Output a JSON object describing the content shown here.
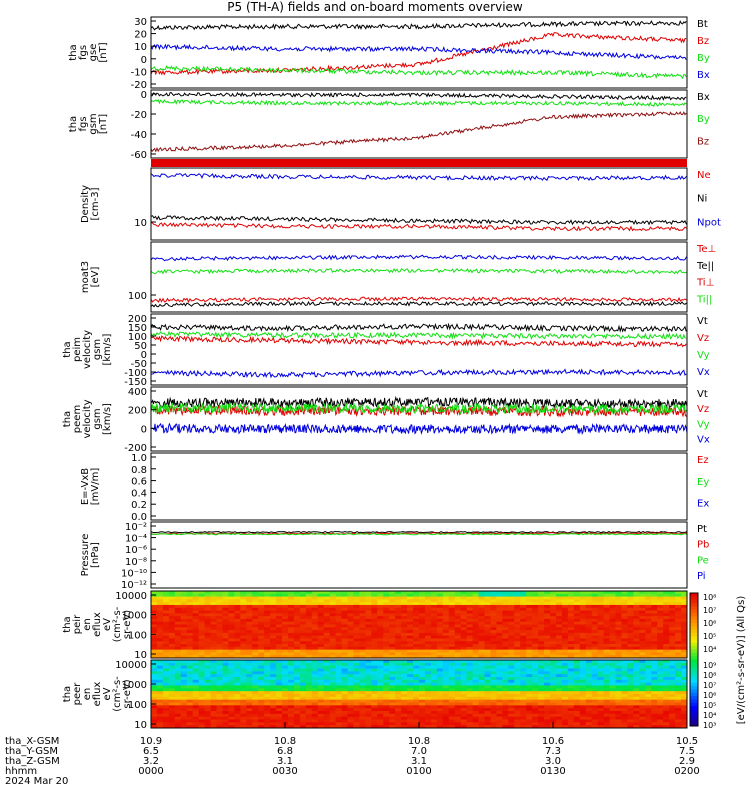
{
  "title": "P5 (TH-A) fields and on-board moments overview",
  "colors": {
    "black": "#000000",
    "red": "#e00000",
    "green": "#10e010",
    "blue": "#0000e0",
    "darkred": "#901010"
  },
  "panels": [
    {
      "id": "fgs-gse",
      "ylabel": [
        "tha",
        "fgs",
        "gse",
        "[nT]"
      ],
      "ticks": [
        "30",
        "20",
        "10",
        "0",
        "-10",
        "-20"
      ],
      "legend": [
        {
          "name": "Bt",
          "color": "black"
        },
        {
          "name": "Bz",
          "color": "red"
        },
        {
          "name": "By",
          "color": "green"
        },
        {
          "name": "Bx",
          "color": "blue"
        }
      ]
    },
    {
      "id": "fgs-gsm",
      "ylabel": [
        "tha",
        "fgs",
        "gsm",
        "[nT]"
      ],
      "ticks": [
        "0",
        "-20",
        "-40",
        "-60"
      ],
      "legend": [
        {
          "name": "Bx",
          "color": "black"
        },
        {
          "name": "By",
          "color": "green"
        },
        {
          "name": "Bz",
          "color": "darkred"
        }
      ]
    },
    {
      "id": "density",
      "ylabel": [
        "Density",
        "[cm-3]"
      ],
      "ticks": [
        "10"
      ],
      "legend": [
        {
          "name": "Ne",
          "color": "red"
        },
        {
          "name": "Ni",
          "color": "black"
        },
        {
          "name": "Npot",
          "color": "blue"
        }
      ]
    },
    {
      "id": "temperature",
      "ylabel": [
        "moat3",
        "[eV]"
      ],
      "ticks": [
        "100"
      ],
      "legend": [
        {
          "name": "Te⊥",
          "color": "red"
        },
        {
          "name": "Te||",
          "color": "black"
        },
        {
          "name": "Ti⊥",
          "color": "red"
        },
        {
          "name": "Ti||",
          "color": "green"
        }
      ]
    },
    {
      "id": "peim",
      "ylabel": [
        "tha",
        "peim",
        "velocity",
        "gsm",
        "[km/s]"
      ],
      "ticks": [
        "200",
        "150",
        "100",
        "50",
        "0",
        "-50",
        "-100",
        "-150"
      ],
      "legend": [
        {
          "name": "Vt",
          "color": "black"
        },
        {
          "name": "Vz",
          "color": "red"
        },
        {
          "name": "Vy",
          "color": "green"
        },
        {
          "name": "Vx",
          "color": "blue"
        }
      ]
    },
    {
      "id": "peem",
      "ylabel": [
        "tha",
        "peem",
        "velocity",
        "gsm",
        "[km/s]"
      ],
      "ticks": [
        "400",
        "200",
        "0",
        "-200"
      ],
      "legend": [
        {
          "name": "Vt",
          "color": "black"
        },
        {
          "name": "Vz",
          "color": "red"
        },
        {
          "name": "Vy",
          "color": "green"
        },
        {
          "name": "Vx",
          "color": "blue"
        }
      ]
    },
    {
      "id": "efield",
      "ylabel": [
        "E=-VxB",
        "[mV/m]"
      ],
      "ticks": [
        "1.0",
        "0.8",
        "0.6",
        "0.4",
        "0.2",
        "0.0"
      ],
      "legend": [
        {
          "name": "Ez",
          "color": "red"
        },
        {
          "name": "Ey",
          "color": "green"
        },
        {
          "name": "Ex",
          "color": "blue"
        }
      ]
    },
    {
      "id": "pressure",
      "ylabel": [
        "Pressure",
        "[nPa]"
      ],
      "ticks": [
        "10⁻²",
        "10⁻⁴",
        "10⁻⁶",
        "10⁻⁸",
        "10⁻¹⁰",
        "10⁻¹²"
      ],
      "legend": [
        {
          "name": "Pt",
          "color": "black"
        },
        {
          "name": "Pb",
          "color": "red"
        },
        {
          "name": "Pe",
          "color": "green"
        },
        {
          "name": "Pi",
          "color": "blue"
        }
      ]
    },
    {
      "id": "peir",
      "ylabel": [
        "tha",
        "peir",
        "en",
        "eflux",
        "eV",
        "(cm²-s-",
        "sr-eV)"
      ],
      "ticks": [
        "10000",
        "1000",
        "100",
        "10"
      ],
      "colorbar_ticks": [
        "10⁸",
        "10⁷",
        "10⁶",
        "10⁵",
        "10⁴"
      ]
    },
    {
      "id": "peer",
      "ylabel": [
        "tha",
        "peer",
        "en",
        "eflux",
        "eV",
        "(cm²-s-",
        "sr-eV)"
      ],
      "ticks": [
        "10000",
        "1000",
        "100",
        "10"
      ],
      "colorbar_ticks": [
        "10⁹",
        "10⁸",
        "10⁷",
        "10⁶",
        "10⁵",
        "10⁴",
        "10³"
      ]
    }
  ],
  "colorbar_label": "[eV/(cm²-s-sr-eV)] (All Qs)",
  "footer": {
    "rows": [
      {
        "label": "tha_X-GSM",
        "values": [
          "10.9",
          "10.8",
          "10.8",
          "10.6",
          "10.5"
        ]
      },
      {
        "label": "tha_Y-GSM",
        "values": [
          "6.5",
          "6.8",
          "7.0",
          "7.3",
          "7.5"
        ]
      },
      {
        "label": "tha_Z-GSM",
        "values": [
          "3.2",
          "3.1",
          "3.1",
          "3.0",
          "2.9"
        ]
      },
      {
        "label": "hhmm",
        "values": [
          "0000",
          "0030",
          "0100",
          "0130",
          "0200"
        ]
      }
    ],
    "date": "2024 Mar 20"
  },
  "chart_data": [
    {
      "type": "line",
      "title": "P5 (TH-A) fields and on-board moments overview",
      "ylabel": "tha fgs gse [nT]",
      "ylim": [
        -25,
        35
      ],
      "x": [
        "0000",
        "0030",
        "0100",
        "0130",
        "0200"
      ],
      "series": [
        {
          "name": "Bt",
          "values": [
            26,
            27,
            27,
            29,
            30
          ]
        },
        {
          "name": "Bz",
          "values": [
            -12,
            -10,
            -5,
            20,
            15
          ]
        },
        {
          "name": "By",
          "values": [
            -8,
            -10,
            -12,
            -12,
            -15
          ]
        },
        {
          "name": "Bx",
          "values": [
            10,
            8,
            8,
            5,
            0
          ]
        }
      ]
    },
    {
      "type": "line",
      "ylabel": "tha fgs gsm [nT]",
      "ylim": [
        -75,
        8
      ],
      "x": [
        "0000",
        "0030",
        "0100",
        "0130",
        "0200"
      ],
      "series": [
        {
          "name": "Bx",
          "values": [
            3,
            2,
            2,
            0,
            -2
          ]
        },
        {
          "name": "By",
          "values": [
            -6,
            -8,
            -8,
            -8,
            -10
          ]
        },
        {
          "name": "Bz",
          "values": [
            -65,
            -60,
            -50,
            -25,
            -20
          ]
        }
      ]
    },
    {
      "type": "line",
      "ylabel": "Density [cm-3]",
      "scale": "log",
      "x": [
        "0000",
        "0030",
        "0100",
        "0130",
        "0200"
      ],
      "series": [
        {
          "name": "Ne",
          "values": [
            13,
            12,
            12,
            11,
            11
          ]
        },
        {
          "name": "Ni",
          "values": [
            17,
            16,
            15,
            14,
            14
          ]
        },
        {
          "name": "Npot",
          "values": [
            90,
            85,
            82,
            80,
            82
          ]
        }
      ]
    },
    {
      "type": "line",
      "ylabel": "moat3 [eV]",
      "scale": "log",
      "x": [
        "0000",
        "0030",
        "0100",
        "0130",
        "0200"
      ],
      "series": [
        {
          "name": "Te⊥",
          "values": [
            35,
            37,
            38,
            37,
            36
          ]
        },
        {
          "name": "Te||",
          "values": [
            28,
            30,
            30,
            30,
            30
          ]
        },
        {
          "name": "Ti⊥",
          "values": [
            260,
            280,
            290,
            280,
            270
          ]
        },
        {
          "name": "Ti||",
          "values": [
            140,
            150,
            150,
            145,
            140
          ]
        }
      ]
    },
    {
      "type": "line",
      "ylabel": "tha peim velocity gsm [km/s]",
      "ylim": [
        -150,
        200
      ],
      "x": [
        "0000",
        "0030",
        "0100",
        "0130",
        "0200"
      ],
      "series": [
        {
          "name": "Vt",
          "values": [
            135,
            130,
            140,
            130,
            125
          ]
        },
        {
          "name": "Vz",
          "values": [
            80,
            70,
            60,
            55,
            50
          ]
        },
        {
          "name": "Vy",
          "values": [
            100,
            95,
            95,
            90,
            90
          ]
        },
        {
          "name": "Vx",
          "values": [
            -90,
            -100,
            -90,
            -85,
            -90
          ]
        }
      ]
    },
    {
      "type": "line",
      "ylabel": "tha peem velocity gsm [km/s]",
      "ylim": [
        -300,
        400
      ],
      "x": [
        "0000",
        "0030",
        "0100",
        "0130",
        "0200"
      ],
      "series": [
        {
          "name": "Vt",
          "values": [
            230,
            230,
            240,
            220,
            220
          ]
        },
        {
          "name": "Vz",
          "values": [
            150,
            140,
            140,
            130,
            130
          ]
        },
        {
          "name": "Vy",
          "values": [
            170,
            170,
            160,
            160,
            160
          ]
        },
        {
          "name": "Vx",
          "values": [
            -50,
            -60,
            -60,
            -60,
            -60
          ]
        }
      ]
    },
    {
      "type": "line",
      "ylabel": "E=-VxB [mV/m]",
      "ylim": [
        0,
        1
      ],
      "series": []
    },
    {
      "type": "line",
      "ylabel": "Pressure [nPa]",
      "scale": "log",
      "x": [
        "0000",
        "0030",
        "0100",
        "0130",
        "0200"
      ],
      "series": [
        {
          "name": "Pt",
          "values": [
            0.01,
            0.01,
            0.01,
            0.01,
            0.01
          ]
        },
        {
          "name": "Pb",
          "values": [
            0.005,
            0.005,
            0.006,
            0.006,
            0.006
          ]
        },
        {
          "name": "Pe",
          "values": [
            0.004,
            0.004,
            0.004,
            0.004,
            0.004
          ]
        }
      ]
    },
    {
      "type": "heatmap",
      "ylabel": "tha peir en eflux eV/(cm²-s-sr-eV)",
      "y_range_eV": [
        5,
        25000
      ],
      "colorbar": "log 10^3 to 10^8"
    },
    {
      "type": "heatmap",
      "ylabel": "tha peer en eflux eV/(cm²-s-sr-eV)",
      "y_range_eV": [
        5,
        25000
      ],
      "colorbar": "log 10^3 to 10^9"
    }
  ]
}
